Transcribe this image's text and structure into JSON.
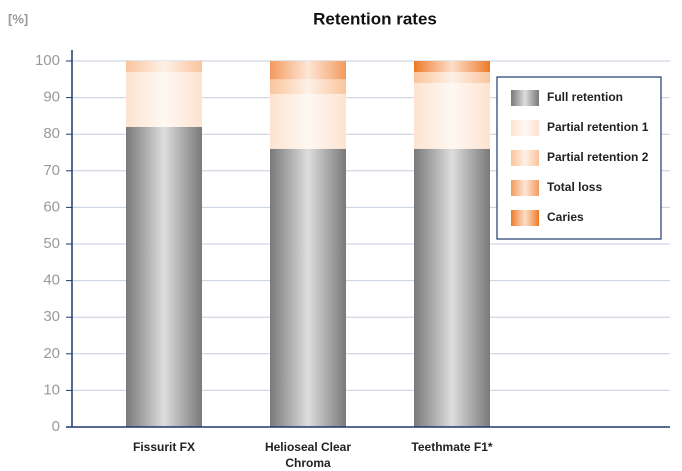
{
  "chart_data": {
    "type": "stacked_bar",
    "title": "Retention rates",
    "y_axis_label": "[%]",
    "categories": [
      "Fissurit FX",
      "Helioseal Clear Chroma",
      "Teethmate F1*"
    ],
    "series": [
      {
        "name": "Full retention",
        "color": "#7a7a7a",
        "values": [
          82,
          76,
          76
        ]
      },
      {
        "name": "Partial retention 1",
        "color": "#fde3d0",
        "values": [
          15,
          15,
          18
        ]
      },
      {
        "name": "Partial retention 2",
        "color": "#f9c49c",
        "values": [
          3,
          4,
          3
        ]
      },
      {
        "name": "Total loss",
        "color": "#f29a5c",
        "values": [
          0,
          5,
          0
        ]
      },
      {
        "name": "Caries",
        "color": "#ec7a1c",
        "values": [
          0,
          0,
          3
        ]
      }
    ],
    "ylim": [
      0,
      100
    ],
    "yticks": [
      0,
      10,
      20,
      30,
      40,
      50,
      60,
      70,
      80,
      90,
      100
    ],
    "grid": true,
    "legend": "upper right"
  }
}
